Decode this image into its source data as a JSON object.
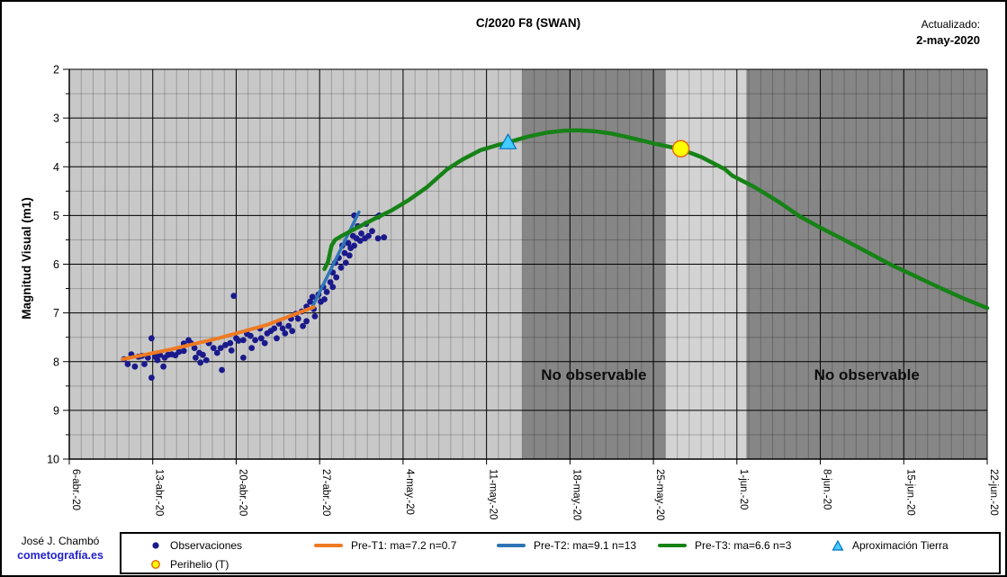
{
  "header": {
    "title": "C/2020 F8 (SWAN)",
    "updated_label": "Actualizado:",
    "updated_date": "2-may-2020"
  },
  "footer": {
    "author": "José J. Chambó",
    "site": "cometografía.es"
  },
  "chart_data": {
    "type": "scatter",
    "title": "C/2020 F8 (SWAN)",
    "xlabel": "",
    "ylabel": "Magnitud Visual (m1)",
    "ylim": [
      2,
      10
    ],
    "y_axis_inverted": true,
    "x_range_days": 77,
    "x_start_date": "2020-04-06",
    "grid": "daily minor / weekly major vertical, 0.5-mag minor / 1-mag major horizontal",
    "legend_position": "bottom",
    "x_tick_labels": [
      "6-abr.-20",
      "13-abr.-20",
      "20-abr.-20",
      "27-abr.-20",
      "4-may.-20",
      "11-may.-20",
      "18-may.-20",
      "25-may.-20",
      "1-jun.-20",
      "8-jun.-20",
      "15-jun.-20",
      "22-jun.-20"
    ],
    "y_ticks": [
      2,
      3,
      4,
      5,
      6,
      7,
      8,
      9,
      10
    ],
    "colors": {
      "plot_bg": "#c8c8c8",
      "observable_gap_bg": "#d3d3d3",
      "band_bg": "#868686",
      "obs_color": "#1a1a8c",
      "pret1_color": "#ee7a22",
      "pret2_color": "#2e75b6",
      "pret3_color": "#168216",
      "triangle_fill": "#44ccff",
      "triangle_stroke": "#0070c0",
      "perihelio_fill": "#ffff00",
      "perihelio_stroke": "#e36c0a"
    },
    "bands": [
      {
        "label": "No observable",
        "start_day": 38.0,
        "end_day": 50.0
      },
      {
        "label": "No observable",
        "start_day": 56.8,
        "end_day": 77.0
      }
    ],
    "observable_gap": {
      "start_day": 50.0,
      "end_day": 56.8
    },
    "series": [
      {
        "name": "Observaciones",
        "type": "scatter",
        "color": "#1a1a8c",
        "points": [
          [
            4.6,
            7.95
          ],
          [
            4.9,
            8.05
          ],
          [
            5.2,
            7.85
          ],
          [
            5.5,
            8.1
          ],
          [
            5.8,
            7.9
          ],
          [
            6.1,
            7.88
          ],
          [
            6.3,
            8.05
          ],
          [
            6.6,
            7.92
          ],
          [
            6.9,
            7.52
          ],
          [
            6.9,
            8.33
          ],
          [
            7.2,
            7.9
          ],
          [
            7.4,
            7.97
          ],
          [
            7.6,
            7.86
          ],
          [
            7.9,
            8.1
          ],
          [
            8.0,
            7.92
          ],
          [
            8.3,
            7.86
          ],
          [
            8.6,
            7.85
          ],
          [
            8.9,
            7.87
          ],
          [
            9.2,
            7.8
          ],
          [
            9.6,
            7.63
          ],
          [
            9.6,
            7.78
          ],
          [
            10.0,
            7.56
          ],
          [
            10.2,
            7.62
          ],
          [
            10.5,
            7.72
          ],
          [
            10.6,
            7.92
          ],
          [
            10.9,
            7.82
          ],
          [
            11.0,
            8.02
          ],
          [
            11.2,
            7.86
          ],
          [
            11.5,
            7.97
          ],
          [
            11.7,
            7.62
          ],
          [
            12.1,
            7.72
          ],
          [
            12.4,
            7.82
          ],
          [
            12.7,
            7.72
          ],
          [
            12.8,
            8.17
          ],
          [
            13.1,
            7.66
          ],
          [
            13.5,
            7.62
          ],
          [
            13.6,
            7.77
          ],
          [
            13.8,
            6.65
          ],
          [
            14.0,
            7.52
          ],
          [
            14.2,
            7.57
          ],
          [
            14.6,
            7.56
          ],
          [
            14.6,
            7.92
          ],
          [
            14.9,
            7.43
          ],
          [
            15.2,
            7.47
          ],
          [
            15.3,
            7.72
          ],
          [
            15.6,
            7.56
          ],
          [
            16.0,
            7.32
          ],
          [
            16.1,
            7.52
          ],
          [
            16.4,
            7.62
          ],
          [
            16.6,
            7.42
          ],
          [
            16.9,
            7.37
          ],
          [
            17.2,
            7.32
          ],
          [
            17.4,
            7.52
          ],
          [
            17.6,
            7.22
          ],
          [
            17.9,
            7.32
          ],
          [
            18.1,
            7.42
          ],
          [
            18.4,
            7.27
          ],
          [
            18.6,
            7.12
          ],
          [
            18.7,
            7.37
          ],
          [
            19.0,
            7.02
          ],
          [
            19.2,
            7.12
          ],
          [
            19.5,
            6.97
          ],
          [
            19.6,
            7.27
          ],
          [
            19.9,
            6.87
          ],
          [
            19.9,
            7.17
          ],
          [
            20.2,
            6.77
          ],
          [
            20.4,
            6.67
          ],
          [
            20.5,
            6.92
          ],
          [
            20.6,
            7.07
          ],
          [
            20.9,
            6.62
          ],
          [
            21.1,
            6.77
          ],
          [
            21.3,
            6.47
          ],
          [
            21.4,
            6.72
          ],
          [
            21.6,
            6.57
          ],
          [
            21.9,
            6.37
          ],
          [
            22.1,
            6.17
          ],
          [
            22.1,
            6.47
          ],
          [
            22.3,
            5.97
          ],
          [
            22.4,
            6.27
          ],
          [
            22.6,
            5.87
          ],
          [
            22.8,
            6.07
          ],
          [
            22.9,
            5.62
          ],
          [
            23.1,
            5.77
          ],
          [
            23.2,
            5.97
          ],
          [
            23.4,
            5.57
          ],
          [
            23.5,
            5.82
          ],
          [
            23.6,
            5.67
          ],
          [
            23.8,
            5.42
          ],
          [
            23.9,
            5.62
          ],
          [
            23.9,
            5.0
          ],
          [
            24.1,
            5.47
          ],
          [
            24.2,
            5.22
          ],
          [
            24.4,
            5.52
          ],
          [
            24.5,
            5.37
          ],
          [
            24.8,
            5.47
          ],
          [
            24.9,
            5.17
          ],
          [
            25.1,
            5.42
          ],
          [
            25.4,
            5.32
          ],
          [
            25.9,
            5.02
          ],
          [
            25.9,
            5.47
          ],
          [
            26.0,
            5.0
          ],
          [
            26.4,
            5.45
          ]
        ]
      },
      {
        "name": "Pre-T2: ma=9.1 n=13",
        "type": "line",
        "color": "#2e75b6",
        "width": 3.5,
        "points": [
          [
            20.3,
            6.92
          ],
          [
            24.3,
            4.93
          ]
        ]
      },
      {
        "name": "Pre-T1: ma=7.2 n=0.7",
        "type": "line",
        "color": "#ee7a22",
        "width": 4,
        "points": [
          [
            4.5,
            7.95
          ],
          [
            8.5,
            7.75
          ],
          [
            12.5,
            7.52
          ],
          [
            16.5,
            7.25
          ],
          [
            20.5,
            6.88
          ]
        ]
      },
      {
        "name": "Pre-T3: ma=6.6 n=3",
        "type": "line",
        "color": "#168216",
        "width": 4.5,
        "points": [
          [
            21.4,
            6.1
          ],
          [
            21.7,
            5.95
          ],
          [
            22.0,
            5.62
          ],
          [
            22.3,
            5.5
          ],
          [
            23.0,
            5.4
          ],
          [
            24.0,
            5.27
          ],
          [
            25.5,
            5.08
          ],
          [
            27.0,
            4.9
          ],
          [
            28.5,
            4.68
          ],
          [
            30.0,
            4.42
          ],
          [
            31.7,
            4.05
          ],
          [
            33.0,
            3.85
          ],
          [
            34.5,
            3.66
          ],
          [
            36.0,
            3.55
          ],
          [
            36.8,
            3.5
          ],
          [
            38.5,
            3.38
          ],
          [
            40.0,
            3.3
          ],
          [
            41.5,
            3.26
          ],
          [
            42.6,
            3.25
          ],
          [
            44.0,
            3.27
          ],
          [
            45.5,
            3.32
          ],
          [
            47.0,
            3.4
          ],
          [
            49.0,
            3.52
          ],
          [
            51.3,
            3.64
          ],
          [
            53.0,
            3.8
          ],
          [
            55.0,
            4.05
          ],
          [
            55.6,
            4.18
          ],
          [
            57.5,
            4.42
          ],
          [
            59.5,
            4.72
          ],
          [
            61.3,
            5.02
          ],
          [
            63.0,
            5.25
          ],
          [
            65.0,
            5.5
          ],
          [
            67.0,
            5.76
          ],
          [
            69.0,
            6.02
          ],
          [
            71.0,
            6.25
          ],
          [
            73.0,
            6.48
          ],
          [
            75.0,
            6.7
          ],
          [
            77.0,
            6.9
          ]
        ]
      },
      {
        "name": "Aproximación Tierra",
        "type": "marker-triangle",
        "color": "#44ccff",
        "stroke": "#0070c0",
        "points": [
          [
            36.8,
            3.5
          ]
        ]
      },
      {
        "name": "Perihelio (T)",
        "type": "marker-circle",
        "color": "#ffff00",
        "stroke": "#e36c0a",
        "points": [
          [
            51.3,
            3.63
          ]
        ]
      }
    ]
  },
  "legend": {
    "rows": [
      [
        {
          "marker": "dot",
          "color": "#1a1a8c",
          "label": "Observaciones"
        },
        {
          "marker": "line",
          "color": "#ee7a22",
          "label": "Pre-T1: ma=7.2 n=0.7"
        },
        {
          "marker": "line",
          "color": "#2e75b6",
          "label": "Pre-T2: ma=9.1 n=13"
        },
        {
          "marker": "line",
          "color": "#168216",
          "label": "Pre-T3: ma=6.6 n=3"
        },
        {
          "marker": "triangle",
          "color": "#44ccff",
          "label": "Aproximación Tierra"
        }
      ],
      [
        {
          "marker": "circle",
          "color": "#ffff00",
          "label": "Perihelio (T)"
        }
      ]
    ]
  }
}
